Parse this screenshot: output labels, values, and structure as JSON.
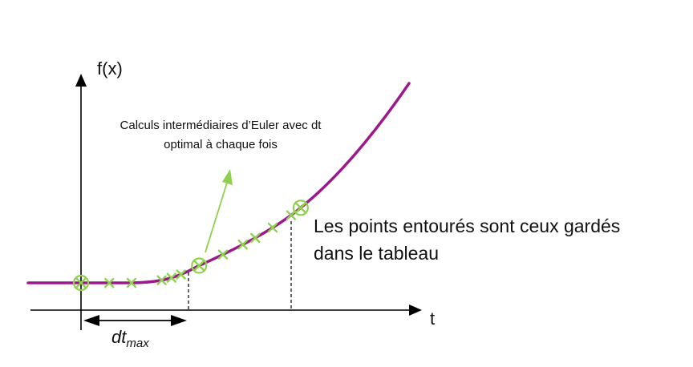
{
  "diagram": {
    "y_axis_label": "f(x)",
    "x_axis_label": "t",
    "dt_label_main": "dt",
    "dt_label_sub": "max",
    "annotation_intermediate": {
      "line1": "Calculs intermédiaires d’Euler avec dt",
      "line2": "optimal à chaque fois"
    },
    "annotation_kept": {
      "line1": "Les points entourés sont ceux gardés",
      "line2": "dans le tableau"
    },
    "colors": {
      "curve": "#9b1a8b",
      "markers": "#8fd14f",
      "axes": "#000000"
    },
    "markers": {
      "kept": [
        0,
        0.3,
        0.59
      ],
      "intermediate": [
        0.07,
        0.125,
        0.2,
        0.225,
        0.25,
        0.365,
        0.42,
        0.455,
        0.505,
        0.56
      ]
    }
  }
}
